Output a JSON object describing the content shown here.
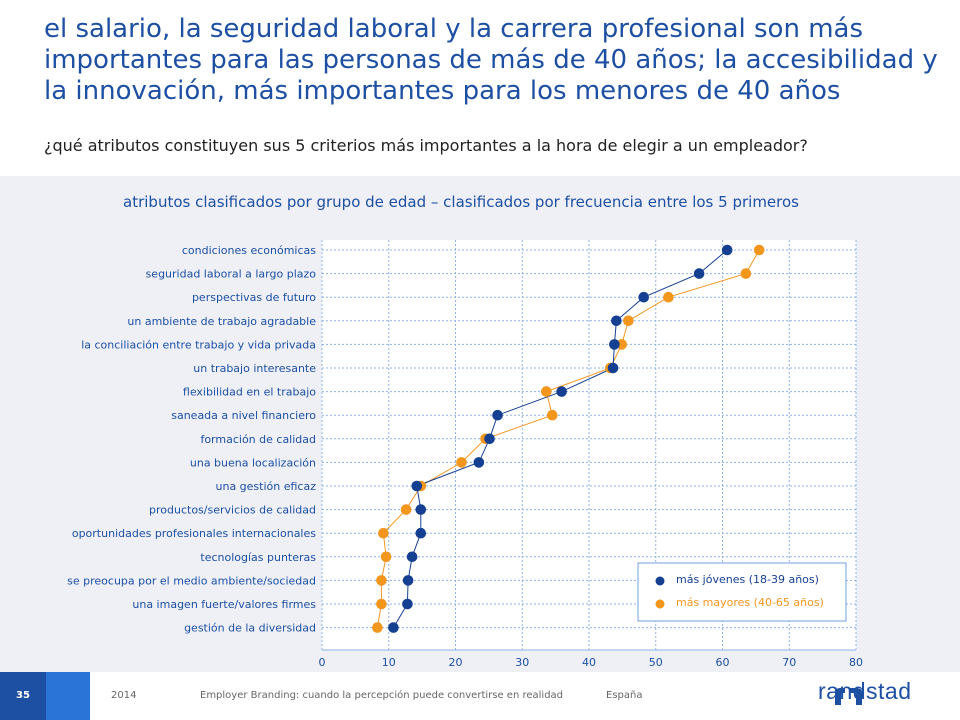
{
  "header": {
    "title": "el salario, la seguridad laboral y la carrera profesional son más importantes para las personas de más de 40 años; la accesibilidad y la innovación, más importantes para los menores de 40 años",
    "subtitle": "¿qué atributos constituyen sus 5 criterios más importantes a la hora de elegir a un empleador?"
  },
  "footer": {
    "page_number": "35",
    "year": "2014",
    "text": "Employer Branding: cuando la percepción puede convertirse en realidad",
    "country": "España",
    "logo_text": "randstad"
  },
  "colors": {
    "younger": "#153f91",
    "older": "#f2961e",
    "accent": "#1d4fa3",
    "panel": "#eef0f6"
  },
  "chart_data": {
    "type": "scatter",
    "title": "atributos clasificados por grupo de edad – clasificados por frecuencia entre los 5 primeros",
    "categories": [
      "condiciones económicas",
      "seguridad laboral a largo plazo",
      "perspectivas de futuro",
      "un ambiente de trabajo agradable",
      "la conciliación entre trabajo y vida privada",
      "un trabajo interesante",
      "flexibilidad en el trabajo",
      "saneada a nivel financiero",
      "formación de calidad",
      "una buena localización",
      "una gestión eficaz",
      "productos/servicios de calidad",
      "oportunidades profesionales internacionales",
      "tecnologías punteras",
      "se preocupa por el medio ambiente/sociedad",
      "una imagen fuerte/valores firmes",
      "gestión de la diversidad"
    ],
    "series": [
      {
        "name": "más jóvenes (18-39 años)",
        "color": "#153f91",
        "values": [
          60.7,
          56.5,
          48.2,
          44.1,
          43.8,
          43.6,
          35.9,
          26.3,
          25.1,
          23.5,
          14.2,
          14.8,
          14.8,
          13.5,
          12.9,
          12.8,
          10.7
        ]
      },
      {
        "name": "más mayores (40-65 años)",
        "color": "#f2961e",
        "values": [
          65.5,
          63.5,
          51.9,
          45.9,
          44.9,
          43.2,
          33.6,
          34.5,
          24.5,
          20.9,
          14.8,
          12.6,
          9.2,
          9.6,
          8.9,
          8.9,
          8.3
        ]
      }
    ],
    "xlim": [
      0,
      80
    ],
    "xticks": [
      0,
      10,
      20,
      30,
      40,
      50,
      60,
      70,
      80
    ],
    "grid": true,
    "legend_position": "bottom-right"
  }
}
